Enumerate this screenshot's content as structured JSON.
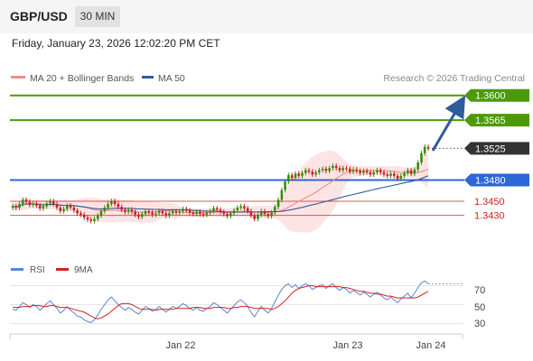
{
  "header": {
    "pair": "GBP/USD",
    "timeframe": "30 MIN",
    "date": "Friday, January 23, 2026 12:02:20 PM CET"
  },
  "legend": {
    "ma20": {
      "label": "MA 20 + Bollinger Bands",
      "color": "#f28b8b"
    },
    "ma50": {
      "label": "MA 50",
      "color": "#2e5c9e"
    },
    "credit": "Research © 2026 Trading Central"
  },
  "rsi_legend": {
    "rsi": "RSI",
    "rsi_color": "#5b84d6",
    "ma": "9MA",
    "ma_color": "#d32020"
  },
  "chart_data": [
    {
      "type": "candlestick",
      "title": "GBP/USD",
      "ylim": [
        1.3372,
        1.3615
      ],
      "levels": [
        {
          "value": "1.3600",
          "kind": "resistance",
          "color": "#4c9a0a"
        },
        {
          "value": "1.3565",
          "kind": "resistance",
          "color": "#4c9a0a"
        },
        {
          "value": "1.3525",
          "kind": "current",
          "color": "#333333"
        },
        {
          "value": "1.3480",
          "kind": "pivot",
          "color": "#2f66d8"
        },
        {
          "value": "1.3450",
          "kind": "support",
          "color": "#d32020"
        },
        {
          "value": "1.3430",
          "kind": "support",
          "color": "#d32020"
        }
      ],
      "x_ticks": [
        "Jan 22",
        "Jan 23",
        "Jan 24"
      ],
      "close_series": [
        1.3443,
        1.3441,
        1.3446,
        1.3452,
        1.3449,
        1.3445,
        1.3447,
        1.3444,
        1.344,
        1.3443,
        1.3447,
        1.345,
        1.3446,
        1.3441,
        1.3436,
        1.3439,
        1.3444,
        1.3441,
        1.3437,
        1.3433,
        1.3431,
        1.3427,
        1.3424,
        1.3422,
        1.3425,
        1.343,
        1.3436,
        1.3441,
        1.3446,
        1.345,
        1.3446,
        1.3442,
        1.3438,
        1.3435,
        1.3438,
        1.3435,
        1.3431,
        1.3428,
        1.3432,
        1.3436,
        1.3434,
        1.3431,
        1.3433,
        1.3436,
        1.3433,
        1.343,
        1.3433,
        1.3436,
        1.3434,
        1.3436,
        1.3439,
        1.3437,
        1.3434,
        1.3432,
        1.3435,
        1.3432,
        1.3431,
        1.3434,
        1.3436,
        1.344,
        1.3438,
        1.3435,
        1.3432,
        1.3429,
        1.3433,
        1.3437,
        1.3441,
        1.3443,
        1.344,
        1.3436,
        1.343,
        1.3425,
        1.3431,
        1.3436,
        1.3432,
        1.3429,
        1.3434,
        1.3442,
        1.3452,
        1.3466,
        1.3478,
        1.3487,
        1.3483,
        1.3489,
        1.3486,
        1.349,
        1.3494,
        1.3492,
        1.3488,
        1.3491,
        1.3494,
        1.3496,
        1.3493,
        1.3497,
        1.35,
        1.3497,
        1.3494,
        1.3497,
        1.3496,
        1.3492,
        1.3495,
        1.3493,
        1.349,
        1.3493,
        1.3491,
        1.3488,
        1.3491,
        1.3494,
        1.3491,
        1.3488,
        1.3486,
        1.3489,
        1.3486,
        1.3482,
        1.3486,
        1.349,
        1.3494,
        1.3489,
        1.3495,
        1.3505,
        1.3518,
        1.3527,
        1.3525
      ]
    },
    {
      "type": "line",
      "title": "RSI",
      "ylim": [
        20,
        80
      ],
      "y_ticks": [
        "70",
        "50",
        "30"
      ],
      "rsi": [
        45,
        44,
        48,
        52,
        50,
        47,
        50,
        48,
        44,
        47,
        51,
        54,
        50,
        46,
        41,
        44,
        48,
        44,
        41,
        38,
        37,
        34,
        32,
        31,
        34,
        39,
        45,
        50,
        55,
        58,
        54,
        50,
        47,
        44,
        47,
        45,
        42,
        40,
        44,
        48,
        46,
        43,
        45,
        48,
        45,
        42,
        45,
        48,
        46,
        48,
        51,
        49,
        46,
        44,
        47,
        44,
        43,
        46,
        48,
        52,
        50,
        47,
        44,
        41,
        45,
        49,
        53,
        55,
        52,
        48,
        42,
        37,
        43,
        48,
        44,
        41,
        46,
        53,
        60,
        66,
        70,
        72,
        68,
        71,
        67,
        70,
        72,
        70,
        66,
        68,
        70,
        71,
        67,
        70,
        72,
        68,
        65,
        68,
        66,
        62,
        65,
        63,
        60,
        63,
        61,
        58,
        61,
        63,
        60,
        57,
        55,
        58,
        55,
        52,
        56,
        59,
        62,
        57,
        62,
        68,
        73,
        75,
        72
      ],
      "ma9": [
        47,
        47,
        47,
        48,
        48,
        48,
        49,
        49,
        49,
        48,
        48,
        49,
        49,
        48,
        47,
        47,
        47,
        46,
        45,
        44,
        43,
        42,
        40,
        38,
        36,
        35,
        36,
        38,
        40,
        43,
        46,
        49,
        51,
        51,
        51,
        50,
        48,
        46,
        45,
        45,
        45,
        45,
        44,
        45,
        45,
        45,
        45,
        45,
        46,
        46,
        46,
        46,
        46,
        47,
        47,
        47,
        46,
        46,
        46,
        47,
        47,
        47,
        47,
        46,
        46,
        47,
        47,
        48,
        48,
        48,
        47,
        46,
        46,
        46,
        46,
        46,
        45,
        46,
        48,
        51,
        54,
        58,
        62,
        65,
        67,
        68,
        69,
        70,
        70,
        69,
        69,
        69,
        69,
        69,
        69,
        69,
        69,
        68,
        68,
        67,
        66,
        65,
        64,
        64,
        63,
        62,
        62,
        61,
        61,
        60,
        59,
        59,
        58,
        57,
        57,
        57,
        57,
        57,
        57,
        58,
        60,
        62,
        64
      ]
    }
  ]
}
